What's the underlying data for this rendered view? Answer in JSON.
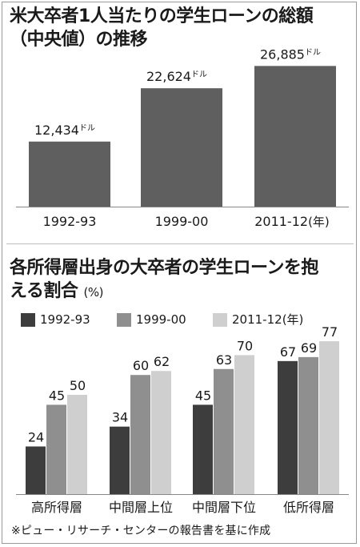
{
  "colors": {
    "chart1_bar": "#5f5f5f",
    "series": [
      "#3d3d3d",
      "#8f8f8f",
      "#cfcfcf"
    ]
  },
  "chart_data": [
    {
      "type": "bar",
      "title": "米大卒者1人当たりの学生ローンの総額（中央値）の推移",
      "title_lines": [
        "米大卒者1人当たりの学生ローンの総額",
        "（中央値）の推移"
      ],
      "categories": [
        "1992-93",
        "1999-00",
        "2011-12"
      ],
      "category_suffix": "(年)",
      "values": [
        12434,
        22624,
        26885
      ],
      "value_labels": [
        "12,434",
        "22,624",
        "26,885"
      ],
      "value_unit": "ドル",
      "ylim": [
        0,
        30000
      ],
      "grid": false,
      "legend": "none"
    },
    {
      "type": "bar",
      "title": "各所得層出身の大卒者の学生ローンを抱える割合",
      "title_lines": [
        "各所得層出身の大卒者の学生ローンを抱",
        "える割合"
      ],
      "unit_label": "(%)",
      "categories": [
        "高所得層",
        "中間層上位",
        "中間層下位",
        "低所得層"
      ],
      "series": [
        {
          "name": "1992-93",
          "values": [
            24,
            34,
            45,
            67
          ]
        },
        {
          "name": "1999-00",
          "values": [
            45,
            60,
            63,
            69
          ]
        },
        {
          "name": "2011-12",
          "values": [
            50,
            62,
            70,
            77
          ]
        }
      ],
      "legend_suffix": "(年)",
      "ylim": [
        0,
        100
      ],
      "grid": false,
      "legend": "top-left"
    }
  ],
  "footnote": "※ピュー・リサーチ・センターの報告書を基に作成"
}
